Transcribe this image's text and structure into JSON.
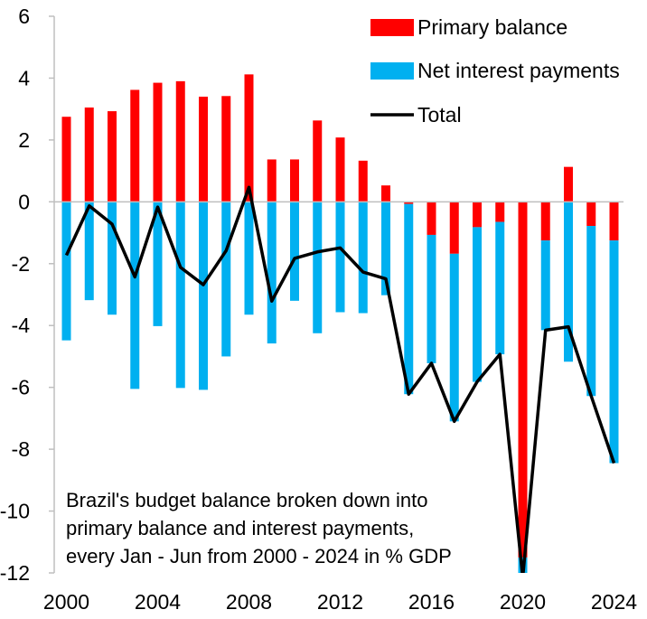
{
  "chart_data": {
    "type": "bar",
    "stacked": true,
    "x": [
      2000,
      2001,
      2002,
      2003,
      2004,
      2005,
      2006,
      2007,
      2008,
      2009,
      2010,
      2011,
      2012,
      2013,
      2014,
      2015,
      2016,
      2017,
      2018,
      2019,
      2020,
      2021,
      2022,
      2023,
      2024
    ],
    "series": [
      {
        "name": "Primary balance",
        "kind": "bar",
        "color": "#ff0000",
        "values": [
          2.75,
          3.05,
          2.93,
          3.62,
          3.85,
          3.9,
          3.4,
          3.42,
          4.12,
          1.37,
          1.37,
          2.63,
          2.08,
          1.33,
          0.53,
          -0.07,
          -1.07,
          -1.68,
          -0.82,
          -0.65,
          -11.5,
          -1.25,
          1.13,
          -0.78,
          -1.25
        ]
      },
      {
        "name": "Net interest payments",
        "kind": "bar",
        "color": "#00b0f0",
        "values": [
          -4.48,
          -3.18,
          -3.65,
          -6.05,
          -4.02,
          -6.02,
          -6.08,
          -5.0,
          -3.65,
          -4.58,
          -3.2,
          -4.25,
          -3.57,
          -3.6,
          -3.02,
          -6.15,
          -4.15,
          -5.42,
          -5.0,
          -4.28,
          -0.65,
          -2.9,
          -5.17,
          -5.5,
          -7.2
        ]
      },
      {
        "name": "Total",
        "kind": "line",
        "color": "#000000",
        "values": [
          -1.73,
          -0.13,
          -0.72,
          -2.43,
          -0.17,
          -2.12,
          -2.68,
          -1.58,
          0.47,
          -3.21,
          -1.83,
          -1.62,
          -1.49,
          -2.27,
          -2.49,
          -6.22,
          -5.22,
          -7.1,
          -5.82,
          -4.93,
          -12.15,
          -4.15,
          -4.04,
          -6.28,
          -8.45
        ]
      }
    ],
    "ylim": [
      -12,
      6
    ],
    "yticks": [
      6,
      4,
      2,
      0,
      -2,
      -4,
      -6,
      -8,
      -10,
      -12
    ],
    "xticks": [
      2000,
      2004,
      2008,
      2012,
      2016,
      2020,
      2024
    ],
    "grid": false,
    "legend_position": "top-right",
    "annotation": [
      "Brazil's budget balance broken down into",
      "primary balance and interest payments,",
      "every Jan - Jun from 2000 - 2024 in % GDP"
    ]
  }
}
